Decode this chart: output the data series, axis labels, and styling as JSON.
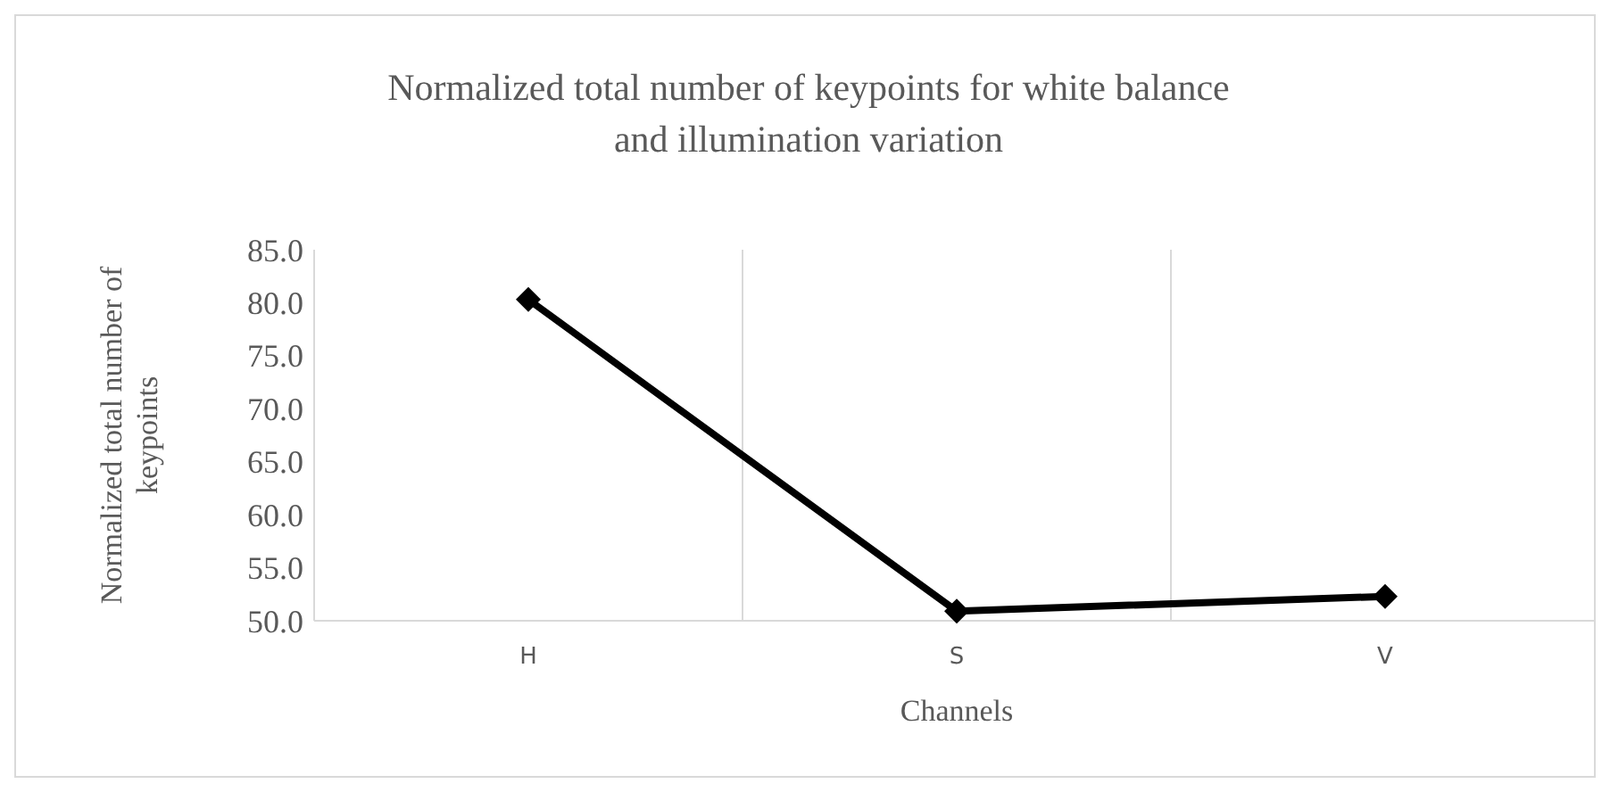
{
  "chart_data": {
    "type": "line",
    "title": "Normalized total number of keypoints for white balance and illumination variation",
    "xlabel": "Channels",
    "ylabel": "Normalized total number of keypoints",
    "categories": [
      "H",
      "S",
      "V"
    ],
    "series": [
      {
        "color": "#000000",
        "values": [
          80.3,
          50.9,
          52.3
        ]
      }
    ],
    "ylim": [
      50,
      85
    ],
    "yticks": [
      {
        "value": 50,
        "label": "50.0"
      },
      {
        "value": 55,
        "label": "55.0"
      },
      {
        "value": 60,
        "label": "60.0"
      },
      {
        "value": 65,
        "label": "65.0"
      },
      {
        "value": 70,
        "label": "70.0"
      },
      {
        "value": 75,
        "label": "75.0"
      },
      {
        "value": 80,
        "label": "80.0"
      },
      {
        "value": 85,
        "label": "85.0"
      }
    ],
    "grid": "x",
    "marker": "diamond",
    "line_style": "solid"
  }
}
